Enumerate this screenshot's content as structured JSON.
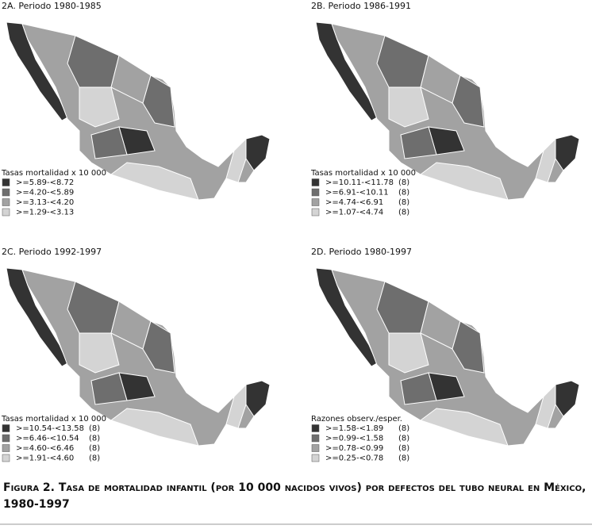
{
  "panels": [
    {
      "title": "2A. Periodo 1980-1985",
      "legend_title": "Tasas mortalidad x 10 000",
      "legend": [
        {
          "label": ">=5.89-<8.72",
          "color": "#333333"
        },
        {
          "label": ">=4.20-<5.89",
          "color": "#6e6e6e"
        },
        {
          "label": ">=3.13-<4.20",
          "color": "#a2a2a2"
        },
        {
          "label": ">=1.29-<3.13",
          "color": "#d4d4d4"
        }
      ]
    },
    {
      "title": "2B. Periodo 1986-1991",
      "legend_title": "Tasas mortalidad x 10 000",
      "legend": [
        {
          "label": ">=10.11-<11.78",
          "count": "(8)",
          "color": "#333333"
        },
        {
          "label": ">=6.91-<10.11",
          "count": "(8)",
          "color": "#6e6e6e"
        },
        {
          "label": ">=4.74-<6.91",
          "count": "(8)",
          "color": "#a2a2a2"
        },
        {
          "label": ">=1.07-<4.74",
          "count": "(8)",
          "color": "#d4d4d4"
        }
      ]
    },
    {
      "title": "2C. Periodo 1992-1997",
      "legend_title": "Tasas mortalidad x 10 000",
      "legend": [
        {
          "label": ">=10.54-<13.58",
          "count": "(8)",
          "color": "#333333"
        },
        {
          "label": ">=6.46-<10.54",
          "count": "(8)",
          "color": "#6e6e6e"
        },
        {
          "label": ">=4.60-<6.46",
          "count": "(8)",
          "color": "#a2a2a2"
        },
        {
          "label": ">=1.91-<4.60",
          "count": "(8)",
          "color": "#d4d4d4"
        }
      ]
    },
    {
      "title": "2D. Periodo 1980-1997",
      "legend_title": "Razones observ./esper.",
      "legend": [
        {
          "label": ">=1.58-<1.89",
          "count": "(8)",
          "color": "#333333"
        },
        {
          "label": ">=0.99-<1.58",
          "count": "(8)",
          "color": "#6e6e6e"
        },
        {
          "label": ">=0.78-<0.99",
          "count": "(8)",
          "color": "#a2a2a2"
        },
        {
          "label": ">=0.25-<0.78",
          "count": "(8)",
          "color": "#d4d4d4"
        }
      ]
    }
  ],
  "caption": {
    "line1": "Figura 2. Tasa de mortalidad infantil (por 10 000 nacidos vivos) por defectos del tubo neural en México,",
    "line2": "1980-1997"
  }
}
